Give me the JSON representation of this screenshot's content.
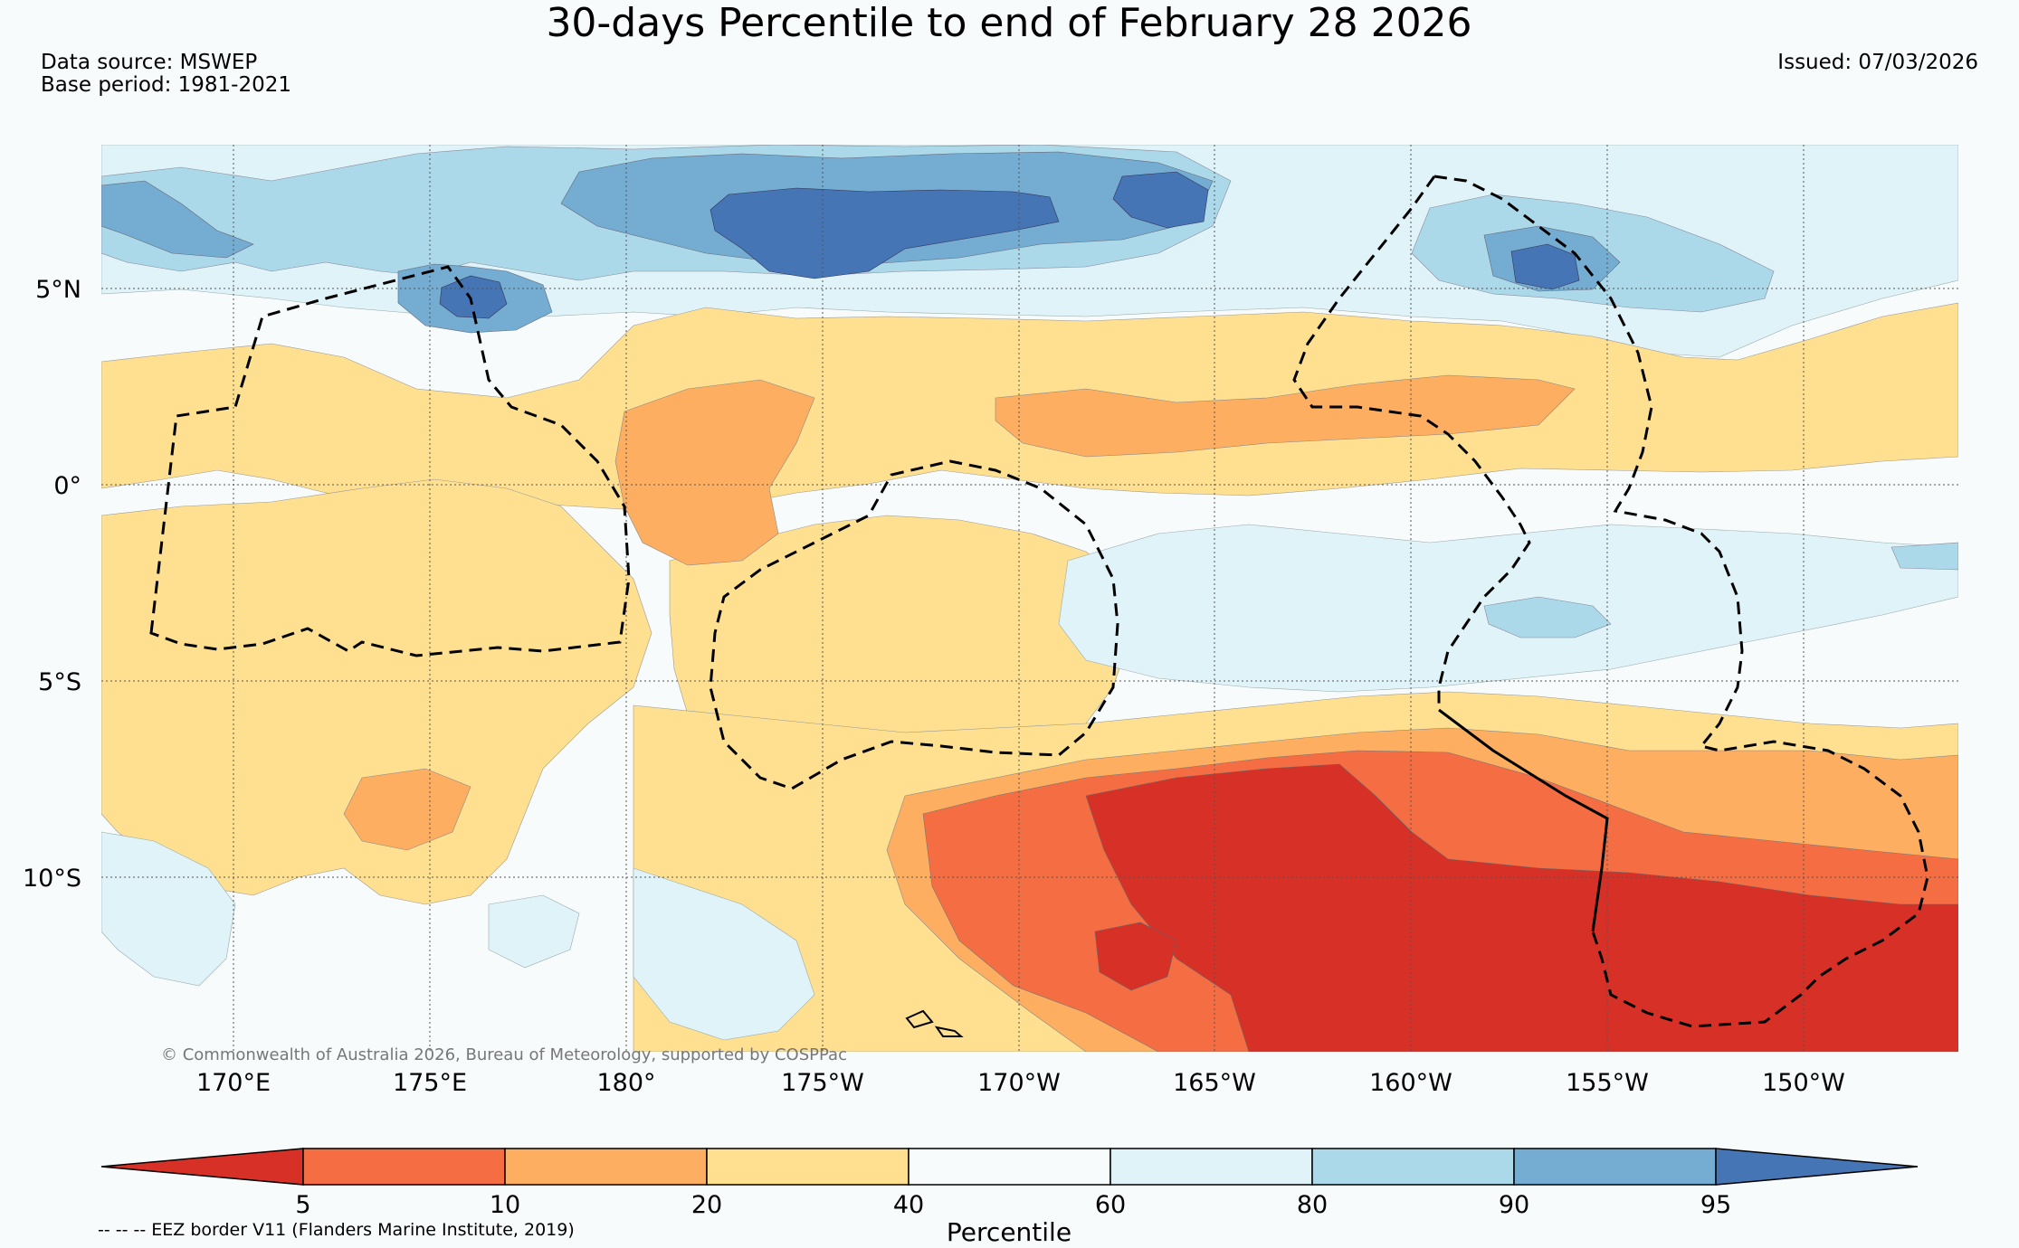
{
  "title": "30-days Percentile to end of February 28 2026",
  "data_source": "Data source: MSWEP",
  "base_period": "Base period: 1981-2021",
  "issued": "Issued: 07/03/2026",
  "copyright": "© Commonwealth of Australia 2026, Bureau of Meteorology, supported by COSPPac",
  "eez_note": "-- -- -- EEZ border V11 (Flanders Marine Institute, 2019)",
  "map": {
    "lon_labels": [
      "170°E",
      "175°E",
      "180°",
      "175°W",
      "170°W",
      "165°W",
      "160°W",
      "155°W",
      "150°W"
    ],
    "lat_labels": [
      "5°N",
      "0°",
      "5°S",
      "10°S"
    ]
  },
  "colorbar": {
    "label": "Percentile",
    "ticks": [
      "5",
      "10",
      "20",
      "40",
      "60",
      "80",
      "90",
      "95"
    ],
    "colors": {
      "below_5": "#d73027",
      "p5_10": "#f46d43",
      "p10_20": "#fdae61",
      "p20_40": "#fee090",
      "p40_60": "#f7fbfc",
      "p60_80": "#e0f3f8",
      "p80_90": "#abd9e9",
      "p90_95": "#74add1",
      "above_95": "#4575b4"
    }
  }
}
